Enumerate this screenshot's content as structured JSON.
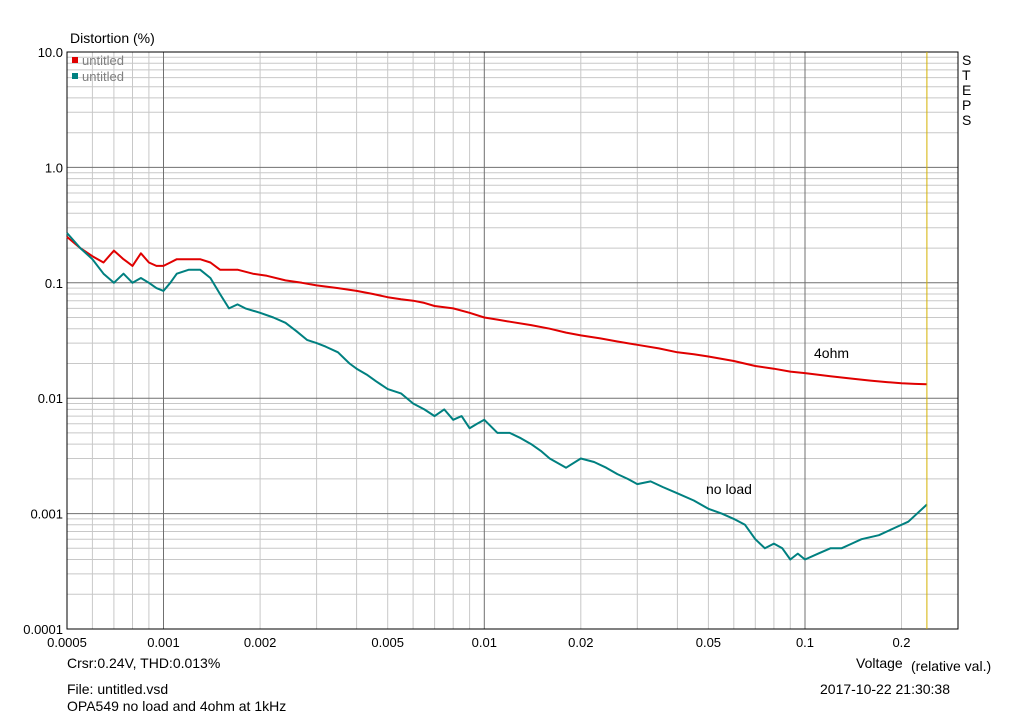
{
  "chart_data": {
    "type": "line",
    "title": "Distortion (%)",
    "xlabel": "Voltage",
    "xlabel_unit": "(relative val.)",
    "xscale": "log",
    "yscale": "log",
    "xlim": [
      0.0005,
      0.3
    ],
    "ylim": [
      0.0001,
      10
    ],
    "x_ticks": [
      "0.0005",
      "0.001",
      "0.002",
      "0.005",
      "0.01",
      "0.02",
      "0.05",
      "0.1",
      "0.2"
    ],
    "x_tick_values": [
      0.0005,
      0.001,
      0.002,
      0.005,
      0.01,
      0.02,
      0.05,
      0.1,
      0.2
    ],
    "y_ticks": [
      "10.0",
      "1.0",
      "0.1",
      "0.01",
      "0.001",
      "0.0001"
    ],
    "y_tick_values": [
      10,
      1,
      0.1,
      0.01,
      0.001,
      0.0001
    ],
    "grid": true,
    "legend_position": "top-left",
    "side_label": "STEPS",
    "cursor_x": 0.24,
    "annotations": [
      {
        "text": "4ohm",
        "x": 0.105,
        "y": 0.024
      },
      {
        "text": "no load",
        "x": 0.048,
        "y": 0.0016
      }
    ],
    "series": [
      {
        "name": "untitled",
        "color": "#e00000",
        "x": [
          0.0005,
          0.00055,
          0.0006,
          0.00065,
          0.0007,
          0.00075,
          0.0008,
          0.00085,
          0.0009,
          0.00095,
          0.001,
          0.00105,
          0.0011,
          0.0012,
          0.0013,
          0.0014,
          0.0015,
          0.0017,
          0.0019,
          0.0021,
          0.0024,
          0.0027,
          0.003,
          0.0035,
          0.004,
          0.0045,
          0.005,
          0.0055,
          0.006,
          0.0065,
          0.007,
          0.008,
          0.009,
          0.01,
          0.011,
          0.012,
          0.014,
          0.016,
          0.018,
          0.02,
          0.023,
          0.026,
          0.03,
          0.035,
          0.04,
          0.045,
          0.05,
          0.06,
          0.07,
          0.08,
          0.09,
          0.1,
          0.12,
          0.14,
          0.16,
          0.18,
          0.2,
          0.22,
          0.24
        ],
        "y": [
          0.25,
          0.2,
          0.17,
          0.15,
          0.19,
          0.16,
          0.14,
          0.18,
          0.15,
          0.14,
          0.14,
          0.15,
          0.16,
          0.16,
          0.16,
          0.15,
          0.13,
          0.13,
          0.12,
          0.115,
          0.105,
          0.1,
          0.095,
          0.09,
          0.085,
          0.08,
          0.075,
          0.072,
          0.07,
          0.067,
          0.063,
          0.06,
          0.055,
          0.05,
          0.048,
          0.046,
          0.043,
          0.04,
          0.037,
          0.035,
          0.033,
          0.031,
          0.029,
          0.027,
          0.025,
          0.024,
          0.023,
          0.021,
          0.019,
          0.018,
          0.017,
          0.0165,
          0.0155,
          0.0148,
          0.0142,
          0.0138,
          0.0135,
          0.0133,
          0.0132
        ]
      },
      {
        "name": "untitled",
        "color": "#008080",
        "x": [
          0.0005,
          0.00055,
          0.0006,
          0.00065,
          0.0007,
          0.00075,
          0.0008,
          0.00085,
          0.0009,
          0.00095,
          0.001,
          0.00105,
          0.0011,
          0.0012,
          0.0013,
          0.0014,
          0.0015,
          0.0016,
          0.0017,
          0.0018,
          0.002,
          0.0022,
          0.0024,
          0.0026,
          0.0028,
          0.003,
          0.0032,
          0.0035,
          0.0038,
          0.004,
          0.0043,
          0.0046,
          0.005,
          0.0055,
          0.006,
          0.0065,
          0.007,
          0.0075,
          0.008,
          0.0085,
          0.009,
          0.0095,
          0.01,
          0.011,
          0.012,
          0.013,
          0.014,
          0.015,
          0.016,
          0.018,
          0.02,
          0.022,
          0.024,
          0.026,
          0.028,
          0.03,
          0.033,
          0.036,
          0.04,
          0.045,
          0.05,
          0.055,
          0.06,
          0.065,
          0.07,
          0.075,
          0.08,
          0.085,
          0.09,
          0.095,
          0.1,
          0.11,
          0.12,
          0.13,
          0.14,
          0.15,
          0.17,
          0.19,
          0.21,
          0.24
        ],
        "y": [
          0.27,
          0.2,
          0.16,
          0.12,
          0.1,
          0.12,
          0.1,
          0.11,
          0.1,
          0.09,
          0.085,
          0.1,
          0.12,
          0.13,
          0.13,
          0.11,
          0.08,
          0.06,
          0.065,
          0.06,
          0.055,
          0.05,
          0.045,
          0.038,
          0.032,
          0.03,
          0.028,
          0.025,
          0.02,
          0.018,
          0.016,
          0.014,
          0.012,
          0.011,
          0.009,
          0.008,
          0.007,
          0.008,
          0.0065,
          0.007,
          0.0055,
          0.006,
          0.0065,
          0.005,
          0.005,
          0.0045,
          0.004,
          0.0035,
          0.003,
          0.0025,
          0.003,
          0.0028,
          0.0025,
          0.0022,
          0.002,
          0.0018,
          0.0019,
          0.0017,
          0.0015,
          0.0013,
          0.0011,
          0.001,
          0.0009,
          0.0008,
          0.0006,
          0.0005,
          0.00055,
          0.0005,
          0.0004,
          0.00045,
          0.0004,
          0.00045,
          0.0005,
          0.0005,
          0.00055,
          0.0006,
          0.00065,
          0.00075,
          0.00085,
          0.0012
        ]
      }
    ]
  },
  "footer": {
    "cursor_readout": "Crsr:0.24V, THD:0.013%",
    "file": "File: untitled.vsd",
    "description": "OPA549 no load and 4ohm at 1kHz",
    "timestamp": "2017-10-22  21:30:38"
  }
}
